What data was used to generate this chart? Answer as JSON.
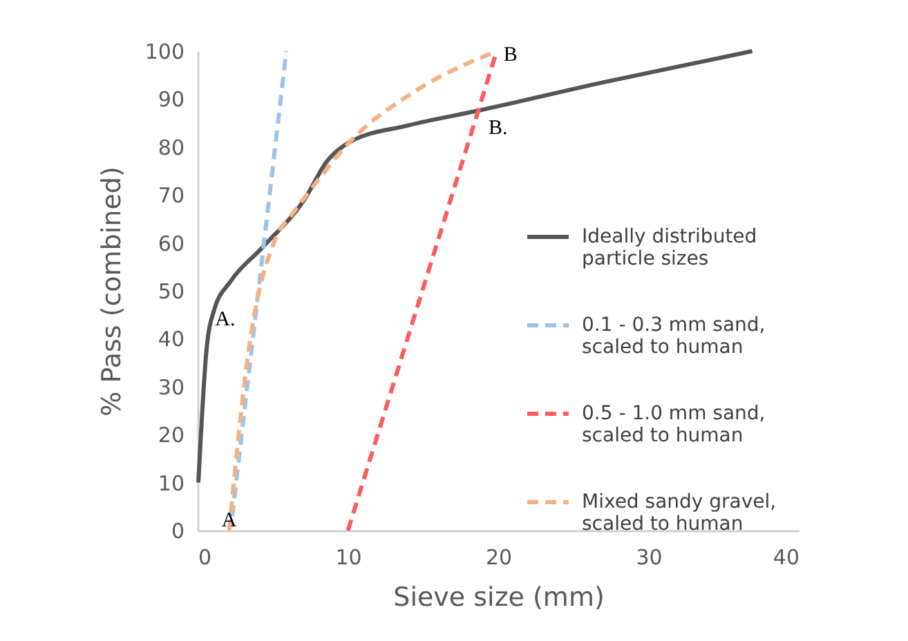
{
  "chart_data": {
    "type": "line",
    "xlabel": "Sieve size (mm)",
    "ylabel": "% Pass (combined)",
    "xlim": [
      0,
      40
    ],
    "xticks": [
      0,
      10,
      20,
      30,
      40
    ],
    "ylim": [
      0,
      100
    ],
    "yticks": [
      0,
      10,
      20,
      30,
      40,
      50,
      60,
      70,
      80,
      90,
      100
    ],
    "grid": false,
    "legend": "right",
    "marker": "none",
    "series": [
      {
        "name": "Ideally distributed particle sizes",
        "color": "#555555",
        "line_style": "solid",
        "x": [
          0.05,
          0.6,
          1.1,
          2.2,
          4.3,
          7.1,
          8.6,
          10.1,
          14,
          18.7,
          27,
          36.9
        ],
        "values": [
          10,
          38,
          46,
          52,
          59,
          69,
          77,
          81,
          84.5,
          87.6,
          93.5,
          100
        ]
      },
      {
        "name": "0.1 - 0.3 mm sand, scaled to human",
        "color": "#9dc3e6",
        "line_style": "dashed",
        "x": [
          2.3,
          5.9
        ],
        "values": [
          3,
          100
        ]
      },
      {
        "name": "0.5 - 1.0 mm sand, scaled to human",
        "color": "#ff5b5b",
        "line_style": "dashed",
        "x": [
          10,
          19.9
        ],
        "values": [
          0,
          100
        ]
      },
      {
        "name": "Mixed sandy gravel, scaled to human",
        "color": "#f4b183",
        "line_style": "dashed",
        "x": [
          2.1,
          3.4,
          5.2,
          6.3,
          7.5,
          10.1,
          14.4,
          19.9
        ],
        "values": [
          0,
          37.7,
          61,
          66,
          71,
          81,
          91.5,
          100
        ]
      }
    ],
    "annotations": [
      {
        "text": "A",
        "x": 2.1,
        "y": 0
      },
      {
        "text": "A.",
        "x": 1.1,
        "y": 46
      },
      {
        "text": "B",
        "x": 19.9,
        "y": 100
      },
      {
        "text": "B.",
        "x": 18.7,
        "y": 87.6
      }
    ]
  }
}
